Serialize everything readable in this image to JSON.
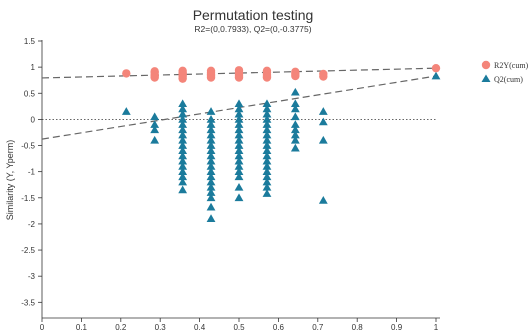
{
  "chart_data": {
    "type": "scatter",
    "title": "Permutation testing",
    "subtitle": "R2=(0,0.7933), Q2=(0,-0.3775)",
    "xlabel": "",
    "ylabel": "Similarity (Y, Yperm)",
    "xlim": [
      0,
      1
    ],
    "ylim": [
      -3.8,
      1.5
    ],
    "x_ticks": [
      "0",
      "0.1",
      "0.2",
      "0.3",
      "0.4",
      "0.5",
      "0.6",
      "0.7",
      "0.8",
      "0.9",
      "1"
    ],
    "x_tick_values": [
      0,
      0.1,
      0.2,
      0.3,
      0.4,
      0.5,
      0.6,
      0.7,
      0.8,
      0.9,
      1
    ],
    "y_ticks": [
      "1.5",
      "1",
      "0.5",
      "0",
      "-0.5",
      "-1",
      "-1.5",
      "-2",
      "-2.5",
      "-3",
      "-3.5"
    ],
    "y_tick_values": [
      1.5,
      1,
      0.5,
      0,
      -0.5,
      -1,
      -1.5,
      -2,
      -2.5,
      -3,
      -3.5
    ],
    "zero_line": true,
    "grid": false,
    "legend_position": "right",
    "series": [
      {
        "name": "R2Y(cum)",
        "marker": "circle",
        "color": "#f4857a",
        "points": [
          [
            0.214,
            0.88
          ],
          [
            0.286,
            0.85
          ],
          [
            0.286,
            0.9
          ],
          [
            0.286,
            0.83
          ],
          [
            0.286,
            0.92
          ],
          [
            0.286,
            0.8
          ],
          [
            0.357,
            0.9
          ],
          [
            0.357,
            0.85
          ],
          [
            0.357,
            0.82
          ],
          [
            0.357,
            0.88
          ],
          [
            0.357,
            0.93
          ],
          [
            0.357,
            0.78
          ],
          [
            0.429,
            0.86
          ],
          [
            0.429,
            0.9
          ],
          [
            0.429,
            0.83
          ],
          [
            0.429,
            0.8
          ],
          [
            0.429,
            0.93
          ],
          [
            0.5,
            0.83
          ],
          [
            0.5,
            0.87
          ],
          [
            0.5,
            0.9
          ],
          [
            0.5,
            0.94
          ],
          [
            0.5,
            0.8
          ],
          [
            0.571,
            0.85
          ],
          [
            0.571,
            0.9
          ],
          [
            0.571,
            0.93
          ],
          [
            0.571,
            0.82
          ],
          [
            0.571,
            0.8
          ],
          [
            0.643,
            0.87
          ],
          [
            0.643,
            0.91
          ],
          [
            0.643,
            0.83
          ],
          [
            0.714,
            0.87
          ],
          [
            0.714,
            0.82
          ],
          [
            1,
            0.98
          ]
        ]
      },
      {
        "name": "Q2(cum)",
        "marker": "triangle",
        "color": "#1b7b9c",
        "points": [
          [
            0.214,
            0.15
          ],
          [
            0.286,
            -0.4
          ],
          [
            0.286,
            -0.2
          ],
          [
            0.286,
            0.05
          ],
          [
            0.286,
            -0.1
          ],
          [
            0.357,
            0.3
          ],
          [
            0.357,
            0.2
          ],
          [
            0.357,
            0.1
          ],
          [
            0.357,
            0.0
          ],
          [
            0.357,
            -0.1
          ],
          [
            0.357,
            -0.2
          ],
          [
            0.357,
            -0.3
          ],
          [
            0.357,
            -0.4
          ],
          [
            0.357,
            -0.5
          ],
          [
            0.357,
            -0.6
          ],
          [
            0.357,
            -0.7
          ],
          [
            0.357,
            -0.8
          ],
          [
            0.357,
            -0.9
          ],
          [
            0.357,
            -1.0
          ],
          [
            0.357,
            -1.1
          ],
          [
            0.357,
            -1.2
          ],
          [
            0.357,
            -1.35
          ],
          [
            0.429,
            0.15
          ],
          [
            0.429,
            0.0
          ],
          [
            0.429,
            -0.1
          ],
          [
            0.429,
            -0.2
          ],
          [
            0.429,
            -0.3
          ],
          [
            0.429,
            -0.4
          ],
          [
            0.429,
            -0.5
          ],
          [
            0.429,
            -0.6
          ],
          [
            0.429,
            -0.7
          ],
          [
            0.429,
            -0.8
          ],
          [
            0.429,
            -0.9
          ],
          [
            0.429,
            -1.0
          ],
          [
            0.429,
            -1.1
          ],
          [
            0.429,
            -1.2
          ],
          [
            0.429,
            -1.3
          ],
          [
            0.429,
            -1.4
          ],
          [
            0.429,
            -1.5
          ],
          [
            0.429,
            -1.68
          ],
          [
            0.429,
            -1.9
          ],
          [
            0.5,
            0.3
          ],
          [
            0.5,
            0.2
          ],
          [
            0.5,
            0.1
          ],
          [
            0.5,
            0.0
          ],
          [
            0.5,
            -0.1
          ],
          [
            0.5,
            -0.2
          ],
          [
            0.5,
            -0.3
          ],
          [
            0.5,
            -0.4
          ],
          [
            0.5,
            -0.5
          ],
          [
            0.5,
            -0.6
          ],
          [
            0.5,
            -0.7
          ],
          [
            0.5,
            -0.8
          ],
          [
            0.5,
            -0.9
          ],
          [
            0.5,
            -1.0
          ],
          [
            0.5,
            -1.1
          ],
          [
            0.5,
            -1.3
          ],
          [
            0.5,
            -1.5
          ],
          [
            0.571,
            0.3
          ],
          [
            0.571,
            0.2
          ],
          [
            0.571,
            0.1
          ],
          [
            0.571,
            0.0
          ],
          [
            0.571,
            -0.1
          ],
          [
            0.571,
            -0.2
          ],
          [
            0.571,
            -0.3
          ],
          [
            0.571,
            -0.4
          ],
          [
            0.571,
            -0.5
          ],
          [
            0.571,
            -0.6
          ],
          [
            0.571,
            -0.7
          ],
          [
            0.571,
            -0.8
          ],
          [
            0.571,
            -0.9
          ],
          [
            0.571,
            -1.0
          ],
          [
            0.571,
            -1.1
          ],
          [
            0.571,
            -1.2
          ],
          [
            0.571,
            -1.3
          ],
          [
            0.571,
            -1.42
          ],
          [
            0.643,
            0.52
          ],
          [
            0.643,
            0.3
          ],
          [
            0.643,
            0.2
          ],
          [
            0.643,
            0.05
          ],
          [
            0.643,
            -0.1
          ],
          [
            0.643,
            -0.2
          ],
          [
            0.643,
            -0.3
          ],
          [
            0.643,
            -0.4
          ],
          [
            0.643,
            -0.55
          ],
          [
            0.714,
            0.15
          ],
          [
            0.714,
            -0.05
          ],
          [
            0.714,
            -0.4
          ],
          [
            0.714,
            -1.55
          ],
          [
            1,
            0.83
          ]
        ]
      }
    ],
    "regression_lines": [
      {
        "series": "R2Y(cum)",
        "intercept": 0.7933,
        "end_value": 0.98,
        "style": "dashed",
        "color": "#666666"
      },
      {
        "series": "Q2(cum)",
        "intercept": -0.3775,
        "end_value": 0.83,
        "style": "dashed",
        "color": "#666666"
      }
    ]
  }
}
